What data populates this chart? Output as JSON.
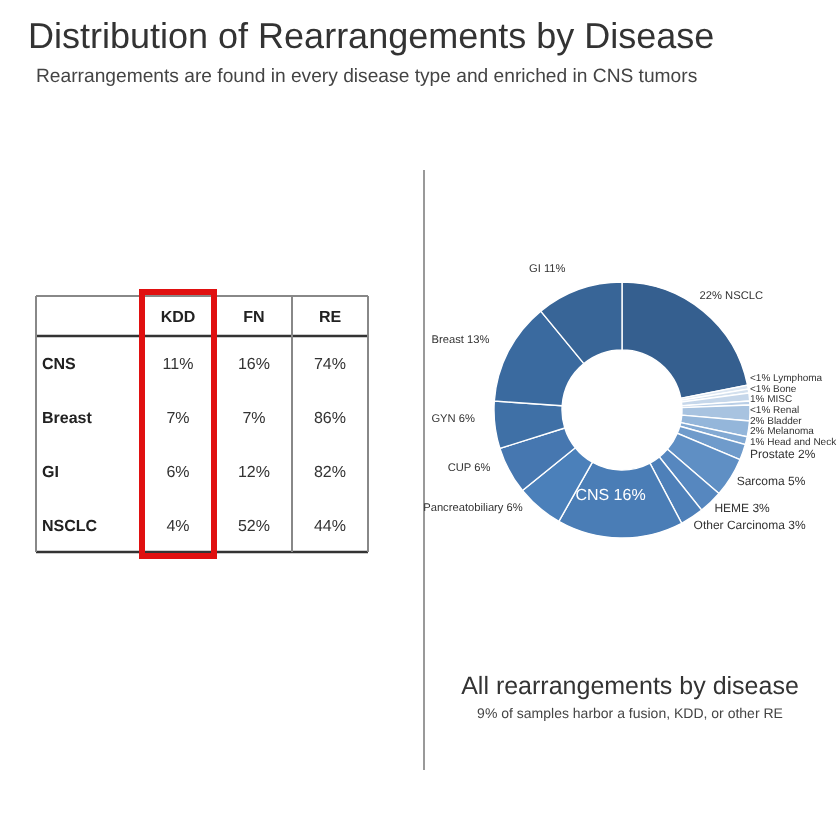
{
  "chart_data": [
    {
      "type": "other",
      "title": "Distribution of Rearrangements by Disease",
      "subtitle": "Rearrangements are found in every disease type and enriched in CNS tumors",
      "categories": [
        "KDD",
        "FN",
        "RE"
      ],
      "y_categories": [
        "CNS",
        "Breast",
        "GI",
        "NSCLC"
      ],
      "cell_labels": [
        [
          "11%",
          "16%",
          "74%"
        ],
        [
          "7%",
          "7%",
          "86%"
        ],
        [
          "6%",
          "12%",
          "82%"
        ],
        [
          "4%",
          "52%",
          "44%"
        ]
      ]
    },
    {
      "type": "donut",
      "title": "All rearrangements by disease",
      "annotations": [
        "9% of samples harbor a fusion, KDD, or other RE"
      ],
      "categories": [
        "NSCLC",
        "Lymphoma",
        "Bone",
        "MISC",
        "Renal",
        "Bladder",
        "Melanoma",
        "Head and Neck",
        "Prostate",
        "Sarcoma",
        "HEME",
        "Other Carcinoma",
        "CNS",
        "Pancreatobiliary",
        "CUP",
        "GYN",
        "Breast",
        "GI"
      ],
      "values": [
        22,
        0.5,
        0.5,
        1,
        0.5,
        2,
        2,
        1,
        2,
        5,
        3,
        3,
        16,
        6,
        6,
        6,
        13,
        11
      ],
      "value_labels": [
        "22%",
        "<1%",
        "<1%",
        "1%",
        "<1%",
        "2%",
        "2%",
        "1%",
        "2%",
        "5%",
        "3%",
        "3%",
        "16%",
        "6%",
        "6%",
        "6%",
        "13%",
        "11%"
      ],
      "colors": [
        "#355f8f",
        "#dde7f2",
        "#d3e0ee",
        "#c6d7ea",
        "#b9cee6",
        "#a8c3e0",
        "#94b6da",
        "#82a9d3",
        "#6f9bcb",
        "#5f8fc4",
        "#5687bf",
        "#4e80b9",
        "#4a7db6",
        "#4b80ba",
        "#4677b0",
        "#3f70a6",
        "#3a6a9f",
        "#386597"
      ]
    }
  ]
}
